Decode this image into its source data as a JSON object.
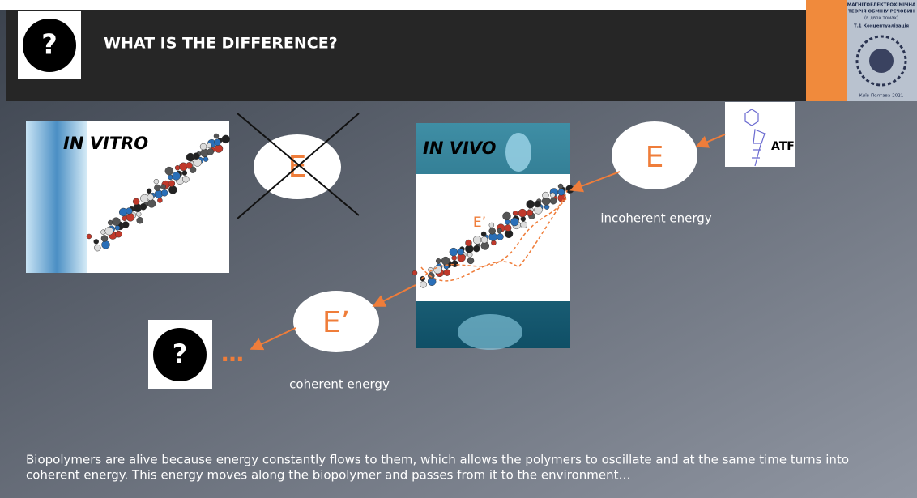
{
  "header": {
    "icon": "?",
    "title": "WHAT IS THE DIFFERENCE?"
  },
  "book": {
    "lines": [
      "МАГНІТОЕЛЕКТРОХІМІЧНА",
      "ТЕОРІЯ ОБМІНУ РЕЧОВИН",
      "(в двох томах)",
      "Т.1 Концептуалізація",
      "Київ-Полтава-2021"
    ]
  },
  "in_vitro": {
    "label": "IN VITRO",
    "crossed_energy": "E"
  },
  "in_vivo": {
    "label": "IN VIVO",
    "inner_energy": "E’"
  },
  "incoming": {
    "energy": "E",
    "source": "ATF",
    "caption": "incoherent energy"
  },
  "outgoing": {
    "energy": "E’",
    "caption": "coherent energy",
    "icon": "?",
    "dots": "…"
  },
  "footer": {
    "text_line1": "Biopolymers are alive because energy constantly flows to them, which allows the polymers to oscillate and at the same time turns into",
    "text_line2": "coherent energy. This energy moves along the biopolymer and passes from it to the environment…"
  }
}
